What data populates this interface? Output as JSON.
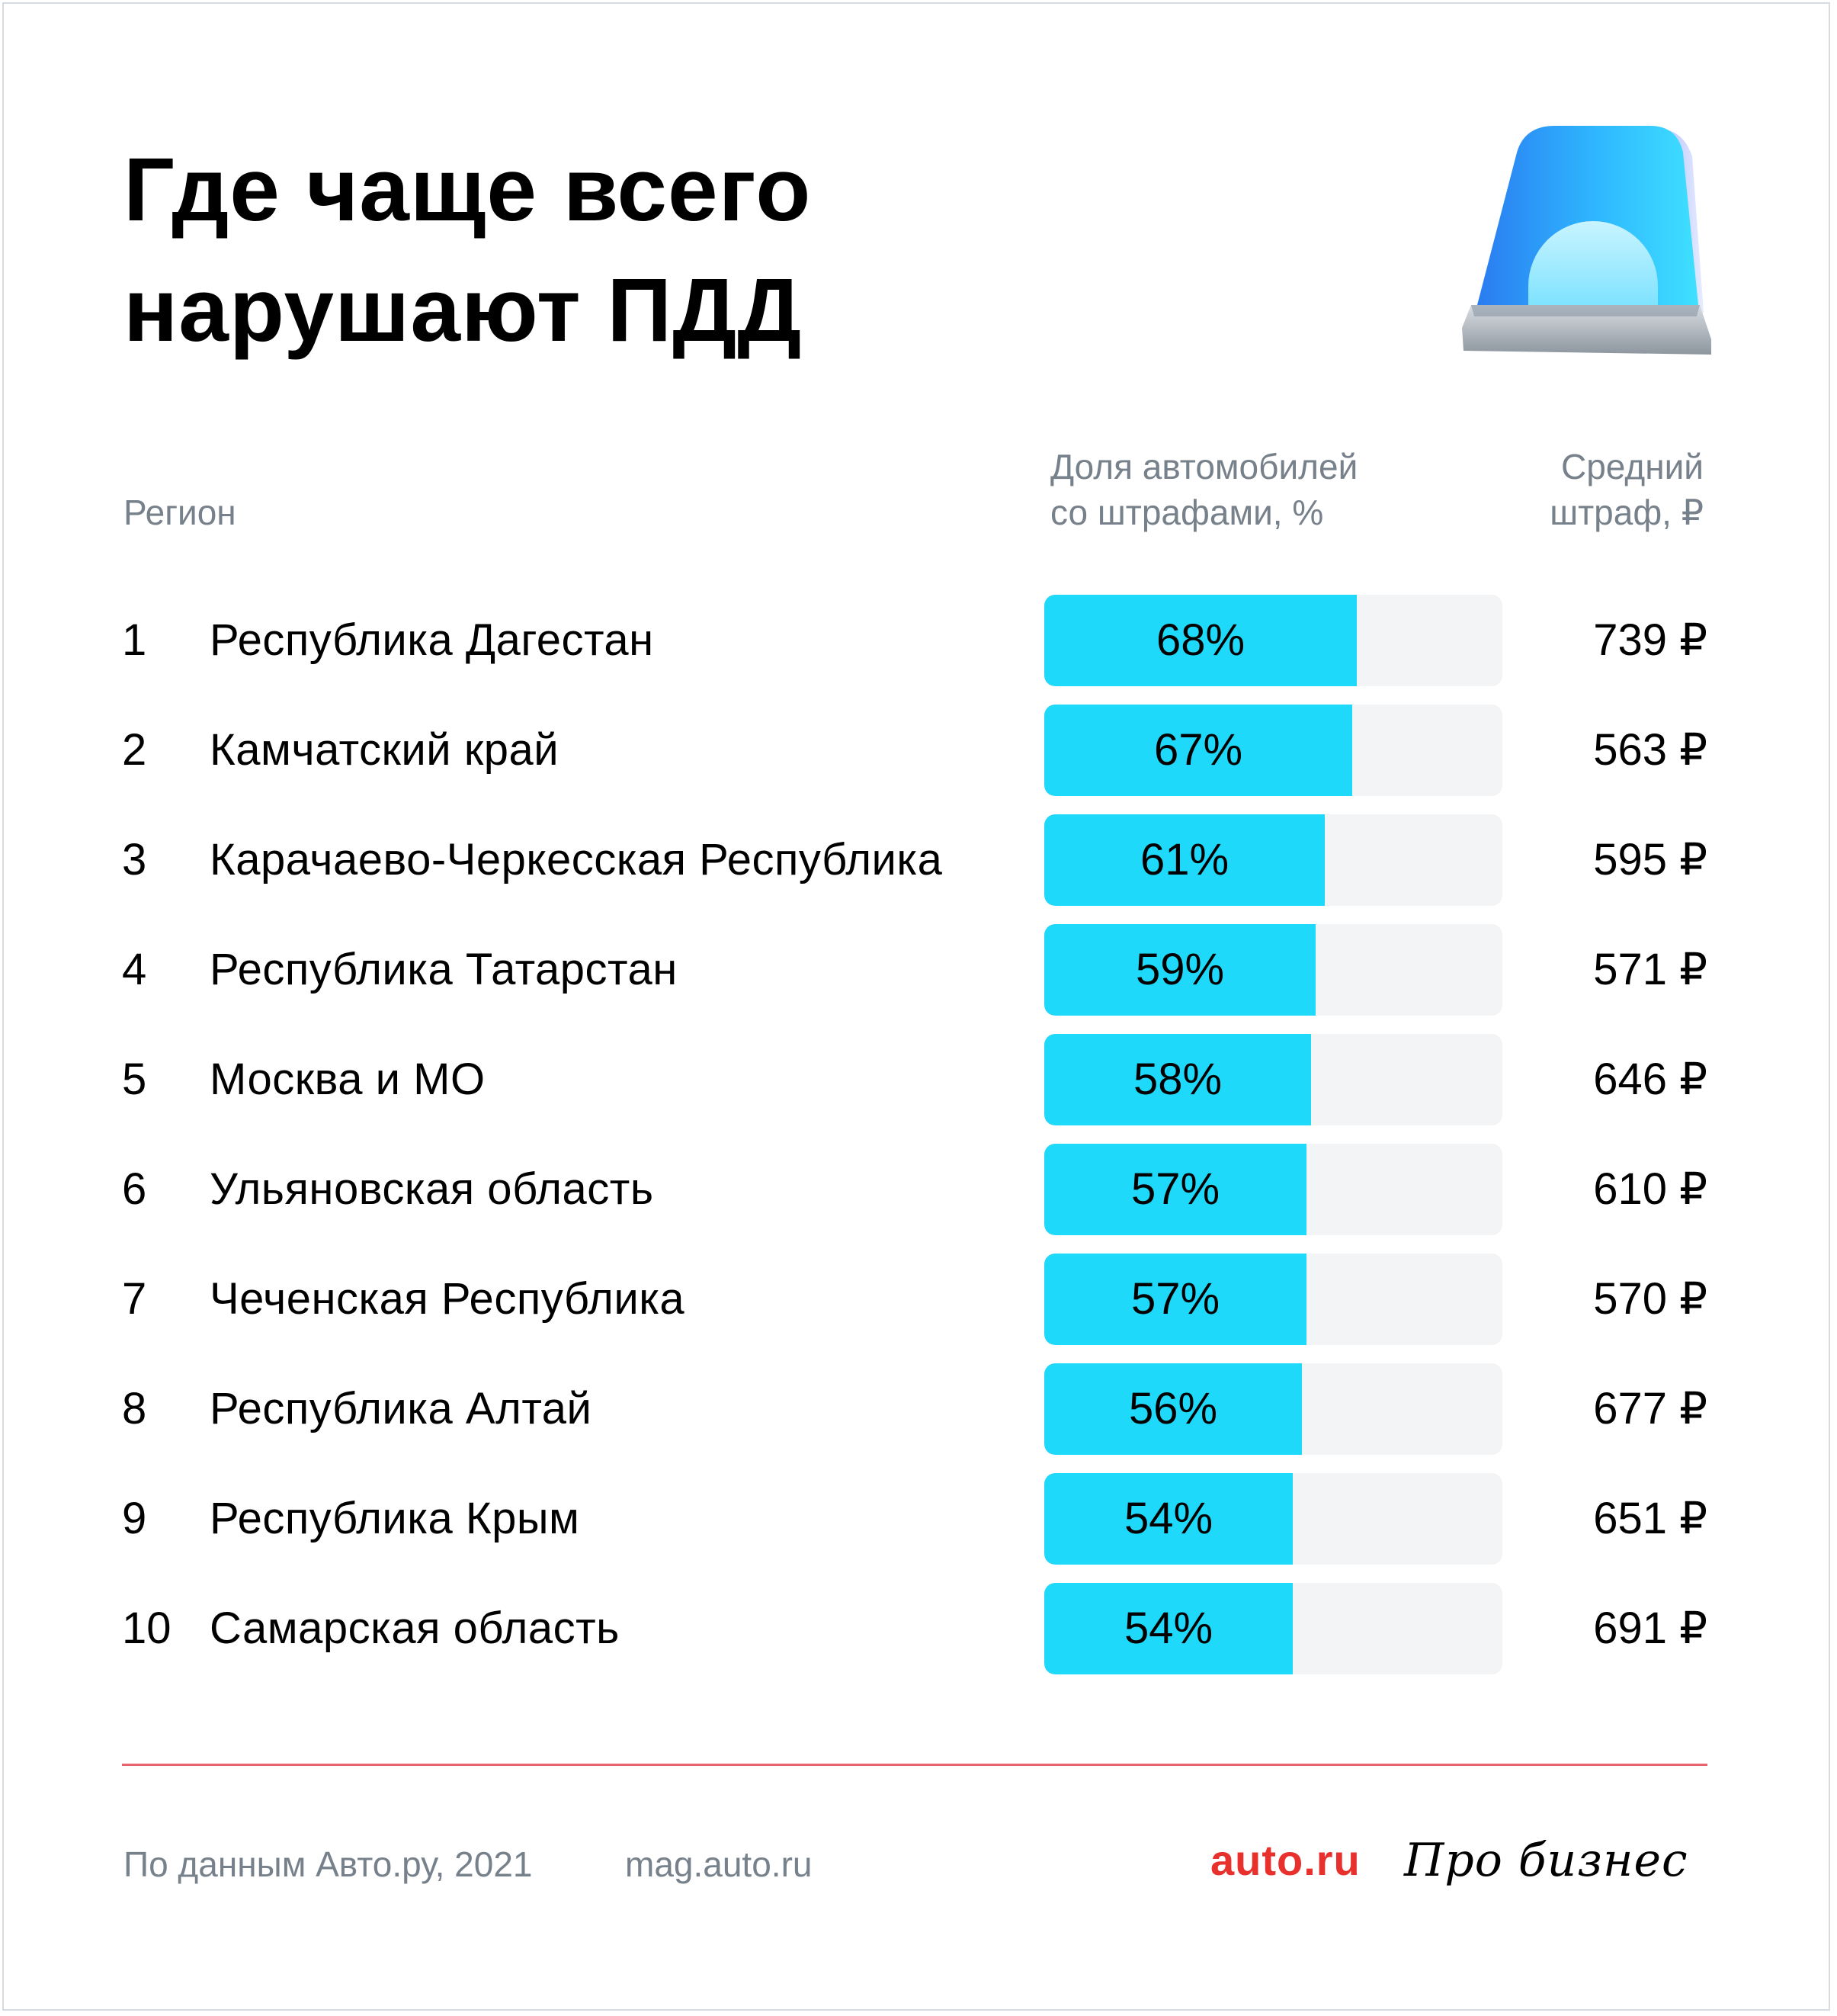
{
  "title": {
    "line1": "Где чаще всего",
    "line2": "нарушают ПДД"
  },
  "icon": "police-beacon-icon",
  "headers": {
    "region": "Регион",
    "share_line1": "Доля автомобилей",
    "share_line2": "со штрафами, %",
    "fine_line1": "Средний",
    "fine_line2": "штраф, ₽"
  },
  "chart_data": {
    "type": "bar",
    "title": "Где чаще всего нарушают ПДД",
    "xlabel": "",
    "ylabel": "Доля автомобилей со штрафами, %",
    "ylim": [
      0,
      100
    ],
    "categories": [
      "Республика Дагестан",
      "Камчатский край",
      "Карачаево-Черкесская Республика",
      "Республика Татарстан",
      "Москва и МО",
      "Ульяновская область",
      "Чеченская Республика",
      "Республика Алтай",
      "Республика Крым",
      "Самарская область"
    ],
    "ranks": [
      "1",
      "2",
      "3",
      "4",
      "5",
      "6",
      "7",
      "8",
      "9",
      "10"
    ],
    "values": [
      68,
      67,
      61,
      59,
      58,
      57,
      57,
      56,
      54,
      54
    ],
    "value_labels": [
      "68%",
      "67%",
      "61%",
      "59%",
      "58%",
      "57%",
      "57%",
      "56%",
      "54%",
      "54%"
    ],
    "fines": [
      "739 ₽",
      "563 ₽",
      "595 ₽",
      "571 ₽",
      "646 ₽",
      "610 ₽",
      "570 ₽",
      "677 ₽",
      "651 ₽",
      "691 ₽"
    ],
    "colors": {
      "bar": "#1fd9fa",
      "track": "#f3f4f5"
    }
  },
  "footer": {
    "source": "По данным Авто.ру, 2021",
    "site": "mag.auto.ru",
    "logo_auto": "auto.ru",
    "logo_biz": "Про бизнес"
  },
  "colors": {
    "divider": "#e8646c",
    "logo_auto": "#e8302c",
    "muted_text": "#77818b"
  }
}
